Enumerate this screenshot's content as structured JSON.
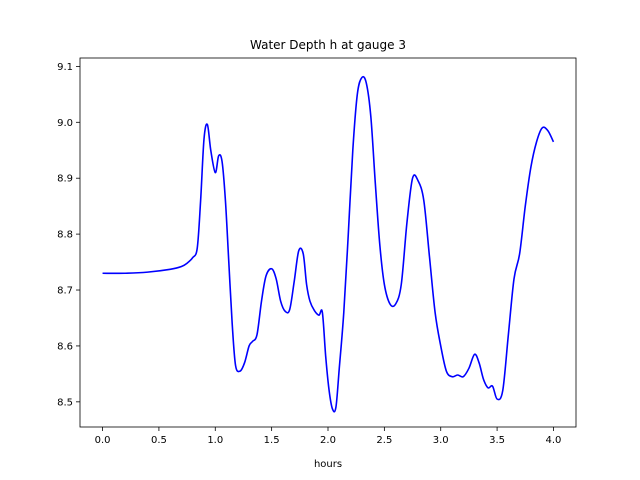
{
  "chart_data": {
    "type": "line",
    "title": "Water Depth h at gauge 3",
    "xlabel": "hours",
    "ylabel": "",
    "xlim": [
      -0.2,
      4.2
    ],
    "ylim": [
      8.455,
      9.115
    ],
    "xticks": [
      0.0,
      0.5,
      1.0,
      1.5,
      2.0,
      2.5,
      3.0,
      3.5,
      4.0
    ],
    "xtick_labels": [
      "0.0",
      "0.5",
      "1.0",
      "1.5",
      "2.0",
      "2.5",
      "3.0",
      "3.5",
      "4.0"
    ],
    "yticks": [
      8.5,
      8.6,
      8.7,
      8.8,
      8.9,
      9.0,
      9.1
    ],
    "ytick_labels": [
      "8.5",
      "8.6",
      "8.7",
      "8.8",
      "8.9",
      "9.0",
      "9.1"
    ],
    "grid": false,
    "series": [
      {
        "color": "#0000ff",
        "x": [
          0.0,
          0.2,
          0.4,
          0.6,
          0.7,
          0.75,
          0.8,
          0.84,
          0.87,
          0.9,
          0.93,
          0.96,
          1.0,
          1.03,
          1.06,
          1.09,
          1.12,
          1.15,
          1.18,
          1.22,
          1.26,
          1.3,
          1.33,
          1.37,
          1.41,
          1.45,
          1.5,
          1.54,
          1.58,
          1.62,
          1.66,
          1.7,
          1.74,
          1.78,
          1.81,
          1.84,
          1.88,
          1.92,
          1.95,
          1.98,
          2.01,
          2.04,
          2.07,
          2.1,
          2.14,
          2.18,
          2.22,
          2.26,
          2.3,
          2.34,
          2.38,
          2.42,
          2.46,
          2.5,
          2.55,
          2.6,
          2.65,
          2.7,
          2.75,
          2.8,
          2.85,
          2.9,
          2.95,
          3.0,
          3.05,
          3.1,
          3.15,
          3.2,
          3.25,
          3.3,
          3.34,
          3.38,
          3.42,
          3.46,
          3.5,
          3.55,
          3.6,
          3.65,
          3.7,
          3.75,
          3.8,
          3.85,
          3.9,
          3.95,
          4.0
        ],
        "y": [
          8.73,
          8.73,
          8.732,
          8.737,
          8.742,
          8.748,
          8.758,
          8.775,
          8.86,
          8.97,
          8.996,
          8.95,
          8.91,
          8.94,
          8.93,
          8.86,
          8.75,
          8.64,
          8.565,
          8.555,
          8.57,
          8.6,
          8.608,
          8.62,
          8.68,
          8.725,
          8.738,
          8.72,
          8.68,
          8.662,
          8.665,
          8.715,
          8.77,
          8.765,
          8.71,
          8.68,
          8.663,
          8.655,
          8.66,
          8.58,
          8.52,
          8.487,
          8.49,
          8.56,
          8.66,
          8.8,
          8.95,
          9.05,
          9.08,
          9.07,
          9.01,
          8.89,
          8.78,
          8.71,
          8.675,
          8.675,
          8.71,
          8.82,
          8.9,
          8.895,
          8.86,
          8.76,
          8.66,
          8.6,
          8.555,
          8.545,
          8.548,
          8.545,
          8.56,
          8.585,
          8.57,
          8.54,
          8.525,
          8.528,
          8.505,
          8.52,
          8.62,
          8.72,
          8.765,
          8.85,
          8.92,
          8.965,
          8.99,
          8.985,
          8.965
        ]
      }
    ]
  }
}
